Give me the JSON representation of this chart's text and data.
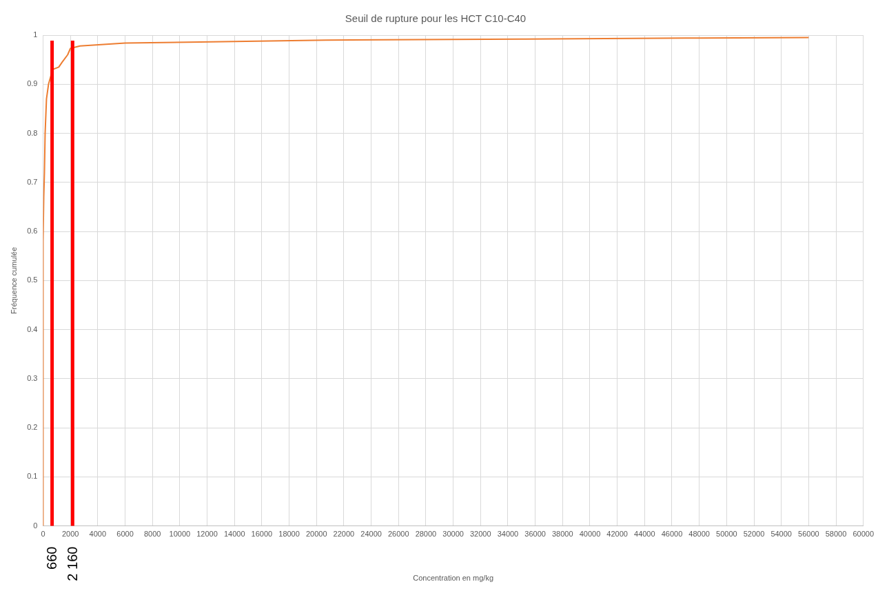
{
  "chart_data": {
    "type": "line",
    "title": "Seuil de rupture pour les HCT C10-C40",
    "xlabel": "Concentration en mg/kg",
    "ylabel": "Fréquence cumulée",
    "series": [
      {
        "color": "#ed7d31",
        "x": [
          0,
          0,
          50,
          100,
          150,
          250,
          400,
          700,
          1150,
          1400,
          1800,
          2000,
          2700,
          6000,
          11500,
          20700,
          35000,
          47000,
          56000
        ],
        "values": [
          0,
          0.58,
          0.67,
          0.72,
          0.8,
          0.87,
          0.9,
          0.93,
          0.935,
          0.945,
          0.96,
          0.973,
          0.978,
          0.984,
          0.986,
          0.99,
          0.992,
          0.994,
          0.995
        ]
      }
    ],
    "xlim": [
      0,
      60000
    ],
    "xticks": [
      0,
      2000,
      4000,
      6000,
      8000,
      10000,
      12000,
      14000,
      16000,
      18000,
      20000,
      22000,
      24000,
      26000,
      28000,
      30000,
      32000,
      34000,
      36000,
      38000,
      40000,
      42000,
      44000,
      46000,
      48000,
      50000,
      52000,
      54000,
      56000,
      58000,
      60000
    ],
    "ylim": [
      0,
      1
    ],
    "yticks": [
      0,
      0.1,
      0.2,
      0.3,
      0.4,
      0.5,
      0.6,
      0.7,
      0.8,
      0.9,
      1
    ],
    "ref_lines": [
      {
        "axis": "x",
        "value": 660,
        "label": "660",
        "color": "#ff0000"
      },
      {
        "axis": "x",
        "value": 2160,
        "label": "2 160",
        "color": "#ff0000"
      }
    ],
    "grid": true,
    "legend": false,
    "marker": "none",
    "line_style": "solid"
  }
}
